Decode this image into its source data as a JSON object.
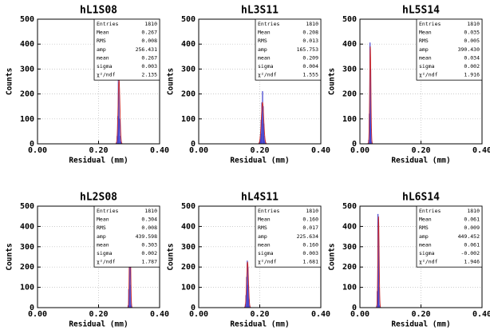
{
  "chart_data": [
    {
      "type": "histogram",
      "title": "hL1S08",
      "x_label": "Residual (mm)",
      "y_label": "Counts",
      "xlim": [
        0,
        0.4
      ],
      "ylim": [
        0,
        500
      ],
      "xticks": [
        {
          "value": 0,
          "label": "0.00"
        },
        {
          "value": 0.2,
          "label": "0.20"
        },
        {
          "value": 0.4,
          "label": "0.40"
        }
      ],
      "yticks": [
        0,
        100,
        200,
        300,
        400,
        500
      ],
      "grid": true,
      "hist_color": "#3a3acc",
      "fit_color": "#cc2a2a",
      "bins": [
        0.258,
        0.26,
        0.262,
        0.264,
        0.266,
        0.268,
        0.27,
        0.272,
        0.274,
        0.276
      ],
      "counts": [
        5,
        30,
        110,
        270,
        250,
        100,
        30,
        8,
        2
      ],
      "stats": {
        "names": [
          "Entries",
          "Mean",
          "RMS",
          "amp",
          "mean",
          "sigma",
          "χ²/ndf"
        ],
        "values": [
          1810,
          0.267,
          0.008,
          256.431,
          0.267,
          0.003,
          2.135
        ],
        "value_labels": [
          "1810",
          "0.267",
          "0.008",
          "256.431",
          "0.267",
          "0.003",
          "2.135"
        ]
      }
    },
    {
      "type": "histogram",
      "title": "hL3S11",
      "x_label": "Residual (mm)",
      "y_label": "Counts",
      "xlim": [
        0,
        0.4
      ],
      "ylim": [
        0,
        500
      ],
      "xticks": [
        {
          "value": 0,
          "label": "0.00"
        },
        {
          "value": 0.2,
          "label": "0.20"
        },
        {
          "value": 0.4,
          "label": "0.40"
        }
      ],
      "yticks": [
        0,
        100,
        200,
        300,
        400,
        500
      ],
      "grid": true,
      "hist_color": "#3a3acc",
      "fit_color": "#cc2a2a",
      "bins": [
        0.198,
        0.2,
        0.202,
        0.204,
        0.206,
        0.208,
        0.21,
        0.212,
        0.214,
        0.216,
        0.218,
        0.22
      ],
      "counts": [
        3,
        12,
        40,
        95,
        165,
        210,
        150,
        80,
        30,
        10,
        3
      ],
      "stats": {
        "names": [
          "Entries",
          "Mean",
          "RMS",
          "amp",
          "mean",
          "sigma",
          "χ²/ndf"
        ],
        "values": [
          1810,
          0.208,
          0.013,
          165.753,
          0.209,
          0.004,
          1.555
        ],
        "value_labels": [
          "1810",
          "0.208",
          "0.013",
          "165.753",
          "0.209",
          "0.004",
          "1.555"
        ]
      }
    },
    {
      "type": "histogram",
      "title": "hL5S14",
      "x_label": "Residual (mm)",
      "y_label": "Counts",
      "xlim": [
        0,
        0.4
      ],
      "ylim": [
        0,
        500
      ],
      "xticks": [
        {
          "value": 0,
          "label": "0.00"
        },
        {
          "value": 0.2,
          "label": "0.20"
        },
        {
          "value": 0.4,
          "label": "0.40"
        }
      ],
      "yticks": [
        0,
        100,
        200,
        300,
        400,
        500
      ],
      "grid": true,
      "hist_color": "#3a3acc",
      "fit_color": "#cc2a2a",
      "bins": [
        0.026,
        0.028,
        0.03,
        0.032,
        0.034,
        0.036,
        0.038,
        0.04,
        0.042
      ],
      "counts": [
        2,
        15,
        120,
        405,
        300,
        60,
        8,
        1
      ],
      "stats": {
        "names": [
          "Entries",
          "Mean",
          "RMS",
          "amp",
          "mean",
          "sigma",
          "χ²/ndf"
        ],
        "values": [
          1810,
          0.035,
          0.005,
          390.43,
          0.034,
          0.002,
          1.916
        ],
        "value_labels": [
          "1810",
          "0.035",
          "0.005",
          "390.430",
          "0.034",
          "0.002",
          "1.916"
        ]
      }
    },
    {
      "type": "histogram",
      "title": "hL2S08",
      "x_label": "Residual (mm)",
      "y_label": "Counts",
      "xlim": [
        0,
        0.4
      ],
      "ylim": [
        0,
        500
      ],
      "xticks": [
        {
          "value": 0,
          "label": "0.00"
        },
        {
          "value": 0.2,
          "label": "0.20"
        },
        {
          "value": 0.4,
          "label": "0.40"
        }
      ],
      "yticks": [
        0,
        100,
        200,
        300,
        400,
        500
      ],
      "grid": true,
      "hist_color": "#3a3acc",
      "fit_color": "#cc2a2a",
      "bins": [
        0.294,
        0.296,
        0.298,
        0.3,
        0.302,
        0.304,
        0.306,
        0.308,
        0.31,
        0.312
      ],
      "counts": [
        1,
        10,
        90,
        430,
        400,
        110,
        12,
        2,
        0
      ],
      "stats": {
        "names": [
          "Entries",
          "Mean",
          "RMS",
          "amp",
          "mean",
          "sigma",
          "χ²/ndf"
        ],
        "values": [
          1810,
          0.304,
          0.008,
          439.598,
          0.303,
          0.002,
          1.787
        ],
        "value_labels": [
          "1810",
          "0.304",
          "0.008",
          "439.598",
          "0.303",
          "0.002",
          "1.787"
        ]
      }
    },
    {
      "type": "histogram",
      "title": "hL4S11",
      "x_label": "Residual (mm)",
      "y_label": "Counts",
      "xlim": [
        0,
        0.4
      ],
      "ylim": [
        0,
        500
      ],
      "xticks": [
        {
          "value": 0,
          "label": "0.00"
        },
        {
          "value": 0.2,
          "label": "0.20"
        },
        {
          "value": 0.4,
          "label": "0.40"
        }
      ],
      "yticks": [
        0,
        100,
        200,
        300,
        400,
        500
      ],
      "grid": true,
      "hist_color": "#3a3acc",
      "fit_color": "#cc2a2a",
      "bins": [
        0.15,
        0.152,
        0.154,
        0.156,
        0.158,
        0.16,
        0.162,
        0.164,
        0.166,
        0.168,
        0.17
      ],
      "counts": [
        3,
        15,
        60,
        150,
        230,
        200,
        110,
        40,
        10,
        2
      ],
      "stats": {
        "names": [
          "Entries",
          "Mean",
          "RMS",
          "amp",
          "mean",
          "sigma",
          "χ²/ndf"
        ],
        "values": [
          1810,
          0.16,
          0.017,
          225.634,
          0.16,
          0.003,
          1.681
        ],
        "value_labels": [
          "1810",
          "0.160",
          "0.017",
          "225.634",
          "0.160",
          "0.003",
          "1.681"
        ]
      }
    },
    {
      "type": "histogram",
      "title": "hL6S14",
      "x_label": "Residual (mm)",
      "y_label": "Counts",
      "xlim": [
        0,
        0.4
      ],
      "ylim": [
        0,
        500
      ],
      "xticks": [
        {
          "value": 0,
          "label": "0.00"
        },
        {
          "value": 0.2,
          "label": "0.20"
        },
        {
          "value": 0.4,
          "label": "0.40"
        }
      ],
      "yticks": [
        0,
        100,
        200,
        300,
        400,
        500
      ],
      "grid": true,
      "hist_color": "#3a3acc",
      "fit_color": "#cc2a2a",
      "bins": [
        0.052,
        0.054,
        0.056,
        0.058,
        0.06,
        0.062,
        0.064,
        0.066,
        0.068,
        0.07
      ],
      "counts": [
        1,
        8,
        80,
        460,
        420,
        100,
        10,
        1,
        0
      ],
      "stats": {
        "names": [
          "Entries",
          "Mean",
          "RMS",
          "amp",
          "mean",
          "sigma",
          "χ²/ndf"
        ],
        "values": [
          1810,
          0.061,
          0.009,
          449.452,
          0.061,
          -0.002,
          1.946
        ],
        "value_labels": [
          "1810",
          "0.061",
          "0.009",
          "449.452",
          "0.061",
          "-0.002",
          "1.946"
        ]
      }
    }
  ]
}
